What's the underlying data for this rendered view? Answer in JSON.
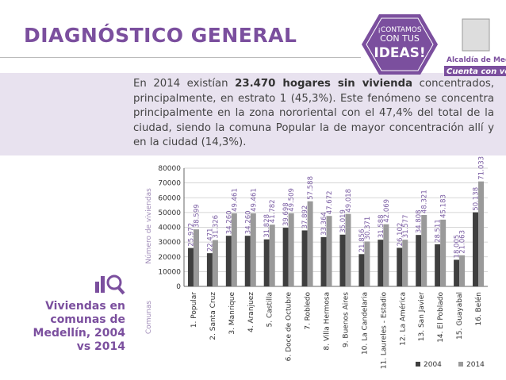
{
  "header": {
    "title": "DIAGNÓSTICO GENERAL",
    "badge": [
      "¡CONTAMOS",
      "CON TUS",
      "IDEAS!"
    ],
    "logo": [
      "Alcaldía de Medellín",
      "Cuenta con vos"
    ]
  },
  "intro": {
    "before": "En 2014 existían",
    "bold": "23.470 hogares sin vivienda",
    "after": "concentrados, principalmente, en estrato 1 (45,3%). Este fenómeno se concentra principalmente en la zona nororiental con el 47,4% del total de la ciudad, siendo la comuna Popular la de mayor concentración allí y en la ciudad (14,3%)."
  },
  "caption": "Viviendas en comunas de Medellín, 2004 vs 2014",
  "chart_data": {
    "type": "bar",
    "ylabel": "Número de viviendas",
    "xlabel": "Comunas",
    "categories": [
      "1. Popular",
      "2. Santa Cruz",
      "3. Manrique",
      "4. Aranjuez",
      "5. Castilla",
      "6. Doce de Octubre",
      "7. Robledo",
      "8. Villa Hermosa",
      "9. Buenos Aires",
      "10. La Candelaria",
      "11. Laureles - Estadio",
      "12. La América",
      "13. San Javier",
      "14. El Poblado",
      "15. Guayabal",
      "16. Belén"
    ],
    "series": [
      {
        "name": "2004",
        "color": "#3f3f3f",
        "values": [
          25972,
          22471,
          34260,
          34260,
          31828,
          39698,
          37892,
          33364,
          35019,
          21856,
          31588,
          26102,
          34808,
          28511,
          18005,
          50138
        ],
        "value_labels": [
          "25.972",
          "22.471",
          "34.260",
          "34.260",
          "31.828",
          "39.698",
          "37.892",
          "33.364",
          "35.019",
          "21.856",
          "31.588",
          "26.102",
          "34.808",
          "28.511",
          "18.005",
          "50.138"
        ]
      },
      {
        "name": "2014",
        "color": "#9a9a9a",
        "values": [
          38599,
          31326,
          49461,
          49461,
          41782,
          49509,
          57588,
          47672,
          49018,
          30371,
          42069,
          31577,
          48321,
          45183,
          21063,
          71033
        ],
        "value_labels": [
          "38.599",
          "31.326",
          "49.461",
          "49.461",
          "41.782",
          "49.509",
          "57.588",
          "47.672",
          "49.018",
          "30.371",
          "42.069",
          "31.577",
          "48.321",
          "45.183",
          "21.063",
          "71.033"
        ]
      }
    ],
    "ylim": [
      0,
      80000
    ],
    "yticks": [
      0,
      10000,
      20000,
      30000,
      40000,
      50000,
      60000,
      70000,
      80000
    ],
    "grid": true
  }
}
